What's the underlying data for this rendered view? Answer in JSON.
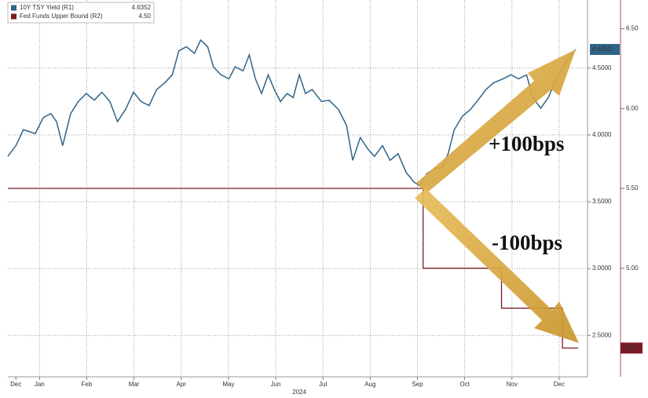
{
  "chart_data": {
    "type": "line",
    "xlim": [
      0.33,
      12.6
    ],
    "xticks": [
      {
        "value": 0.5,
        "label": "Dec"
      },
      {
        "value": 1,
        "label": "Jan"
      },
      {
        "value": 2,
        "label": "Feb"
      },
      {
        "value": 3,
        "label": "Mar"
      },
      {
        "value": 4,
        "label": "Apr"
      },
      {
        "value": 5,
        "label": "May"
      },
      {
        "value": 6,
        "label": "Jun"
      },
      {
        "value": 7,
        "label": "Jul"
      },
      {
        "value": 8,
        "label": "Aug"
      },
      {
        "value": 9,
        "label": "Sep"
      },
      {
        "value": 10,
        "label": "Oct"
      },
      {
        "value": 11,
        "label": "Nov"
      },
      {
        "value": 12,
        "label": "Dec"
      }
    ],
    "year_label": "2024",
    "ylim": [
      2.19,
      5.01
    ],
    "yticks": [
      {
        "value": 2.5,
        "label": "2.5000"
      },
      {
        "value": 3,
        "label": "3.0000"
      },
      {
        "value": 3.5,
        "label": "3.5000"
      },
      {
        "value": 4,
        "label": "4.0000"
      },
      {
        "value": 4.5,
        "label": "4.5000"
      }
    ],
    "y2lim": [
      4.32,
      6.68
    ],
    "y2ticks": [
      {
        "value": 5,
        "label": "5.00"
      },
      {
        "value": 5.5,
        "label": "5.50"
      },
      {
        "value": 6,
        "label": "6.00"
      },
      {
        "value": 6.5,
        "label": "6.50"
      }
    ],
    "grid": true,
    "legend": "upper left",
    "series": [
      {
        "name": "10Y TSY Yield (R1)",
        "color": "#2f6488",
        "last_label": "4.6352",
        "axis": "y",
        "x": [
          0.33,
          0.5,
          0.66,
          0.91,
          1.08,
          1.24,
          1.36,
          1.49,
          1.66,
          1.82,
          1.99,
          2.16,
          2.32,
          2.49,
          2.65,
          2.82,
          2.99,
          3.15,
          3.32,
          3.48,
          3.65,
          3.81,
          3.95,
          4.11,
          4.28,
          4.41,
          4.56,
          4.68,
          4.84,
          5.01,
          5.14,
          5.31,
          5.44,
          5.57,
          5.7,
          5.84,
          5.97,
          6.1,
          6.24,
          6.37,
          6.5,
          6.63,
          6.77,
          6.97,
          7.13,
          7.33,
          7.5,
          7.63,
          7.79,
          7.96,
          8.09,
          8.26,
          8.42,
          8.59,
          8.76,
          8.92,
          9.04,
          9.2,
          9.37,
          9.54,
          9.65,
          9.78,
          9.95,
          10.12,
          10.28,
          10.45,
          10.61,
          10.81,
          10.98,
          11.14,
          11.31,
          11.44,
          11.61,
          11.77,
          11.94,
          12.11,
          12.35
        ],
        "values": [
          3.84,
          3.92,
          4.04,
          4.01,
          4.13,
          4.16,
          4.1,
          3.92,
          4.16,
          4.25,
          4.31,
          4.26,
          4.32,
          4.25,
          4.1,
          4.19,
          4.32,
          4.25,
          4.22,
          4.34,
          4.39,
          4.45,
          4.63,
          4.66,
          4.61,
          4.71,
          4.66,
          4.51,
          4.45,
          4.42,
          4.51,
          4.48,
          4.6,
          4.42,
          4.31,
          4.45,
          4.34,
          4.25,
          4.31,
          4.28,
          4.45,
          4.31,
          4.34,
          4.25,
          4.26,
          4.19,
          4.07,
          3.81,
          3.98,
          3.89,
          3.84,
          3.92,
          3.81,
          3.86,
          3.72,
          3.65,
          3.62,
          3.71,
          3.75,
          3.76,
          3.86,
          4.04,
          4.14,
          4.19,
          4.26,
          4.34,
          4.39,
          4.42,
          4.45,
          4.42,
          4.45,
          4.28,
          4.2,
          4.28,
          4.42,
          4.53,
          4.64
        ]
      },
      {
        "name": "Fed Funds Upper Bound (R2)",
        "color": "#7a1c26",
        "last_label": "4.50",
        "axis": "y2",
        "step": true,
        "x": [
          0.33,
          9.12,
          10.78,
          12.07,
          12.4
        ],
        "values": [
          5.5,
          5.0,
          4.75,
          4.5,
          4.5
        ]
      }
    ],
    "annotations": [
      "+100bps",
      "-100bps"
    ]
  }
}
